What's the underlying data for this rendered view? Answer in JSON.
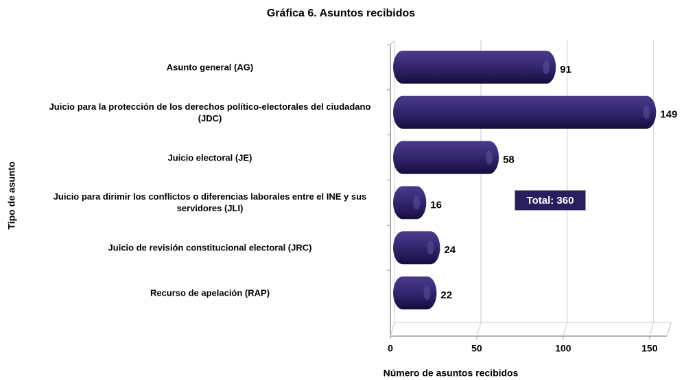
{
  "chart_data": {
    "type": "bar",
    "orientation": "horizontal",
    "title": "Gráfica 6. Asuntos recibidos",
    "x_label": "Número de asuntos recibidos",
    "y_label": "Tipo de asunto",
    "categories": [
      "Asunto general (AG)",
      "Juicio para la protección de los derechos político-electorales del ciudadano (JDC)",
      "Juicio electoral (JE)",
      "Juicio para dirimir los conflictos o diferencias laborales entre el INE y sus servidores (JLI)",
      "Juicio de revisión constitucional electoral (JRC)",
      "Recurso de apelación (RAP)"
    ],
    "values": [
      91,
      149,
      58,
      16,
      24,
      22
    ],
    "color": "#2e2165",
    "xlim": [
      0,
      160
    ],
    "xticks": [
      0,
      50,
      100,
      150
    ],
    "grid": true,
    "annotation": "Total: 360"
  }
}
